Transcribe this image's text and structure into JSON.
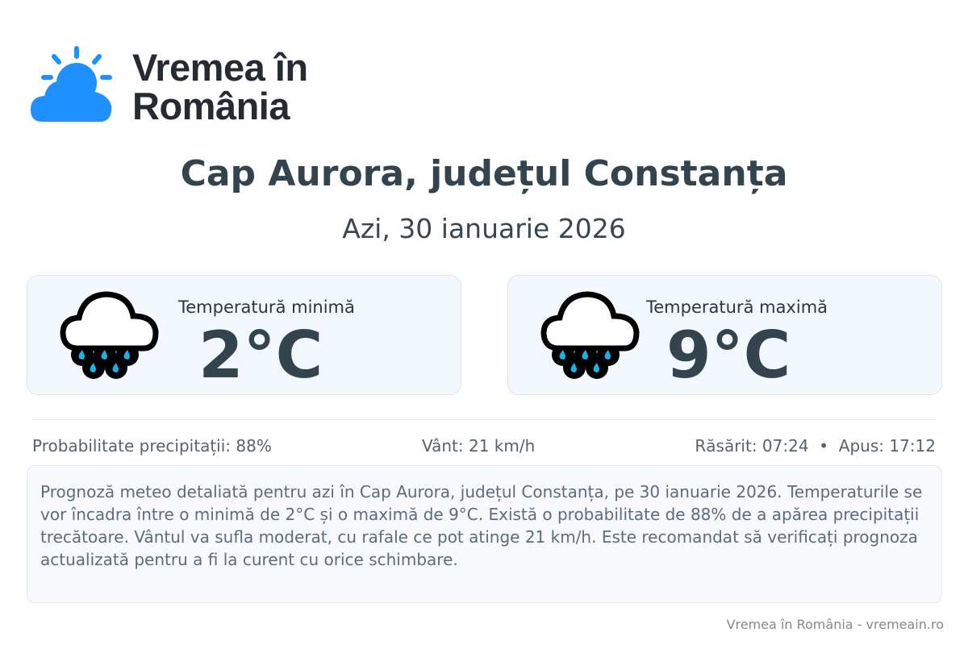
{
  "brand": {
    "name_line1": "Vremea în",
    "name_line2": "România",
    "accent": "#1e90ff"
  },
  "header": {
    "title": "Cap Aurora, județul Constanța",
    "subtitle": "Azi, 30 ianuarie 2026"
  },
  "cards": [
    {
      "label": "Temperatură minimă",
      "value": "2°C",
      "icon": "rain-cloud-icon"
    },
    {
      "label": "Temperatură maximă",
      "value": "9°C",
      "icon": "rain-cloud-icon"
    }
  ],
  "stats": {
    "precip": "Probabilitate precipitații: 88%",
    "wind": "Vânt: 21 km/h",
    "sun": "Răsărit: 07:24  •  Apus: 17:12"
  },
  "description": "Prognoză meteo detaliată pentru azi în Cap Aurora, județul Constanța, pe 30 ianuarie 2026. Temperaturile se vor încadra între o minimă de 2°C și o maximă de 9°C. Există o probabilitate de 88% de a apărea precipitații trecătoare. Vântul va sufla moderat, cu rafale ce pot atinge 21 km/h. Este recomandat să verificați prognoza actualizată pentru a fi la curent cu orice schimbare.",
  "footer": "Vremea în România - vremeain.ro"
}
